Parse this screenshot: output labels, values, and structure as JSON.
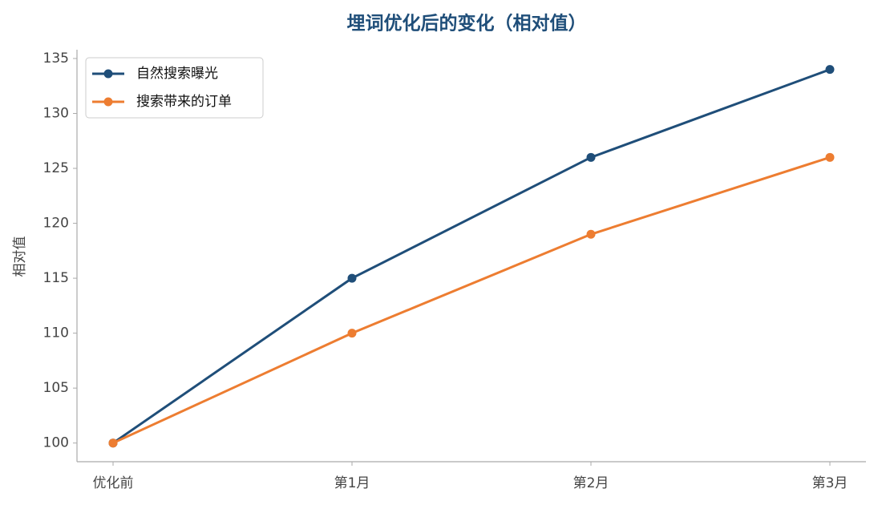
{
  "chart_data": {
    "type": "line",
    "title": "埋词优化后的变化（相对值）",
    "y_label": "相对值",
    "categories": [
      "优化前",
      "第1月",
      "第2月",
      "第3月"
    ],
    "series": [
      {
        "name": "自然搜索曝光",
        "color": "#1f4e79",
        "values": [
          100,
          115,
          126,
          134
        ]
      },
      {
        "name": "搜索带来的订单",
        "color": "#ed7d31",
        "values": [
          100,
          110,
          119,
          126
        ]
      }
    ],
    "ylim": [
      98.3,
      135.8
    ],
    "yticks": [
      100,
      105,
      110,
      115,
      120,
      125,
      130,
      135
    ],
    "grid": false,
    "legend": "upper left"
  }
}
